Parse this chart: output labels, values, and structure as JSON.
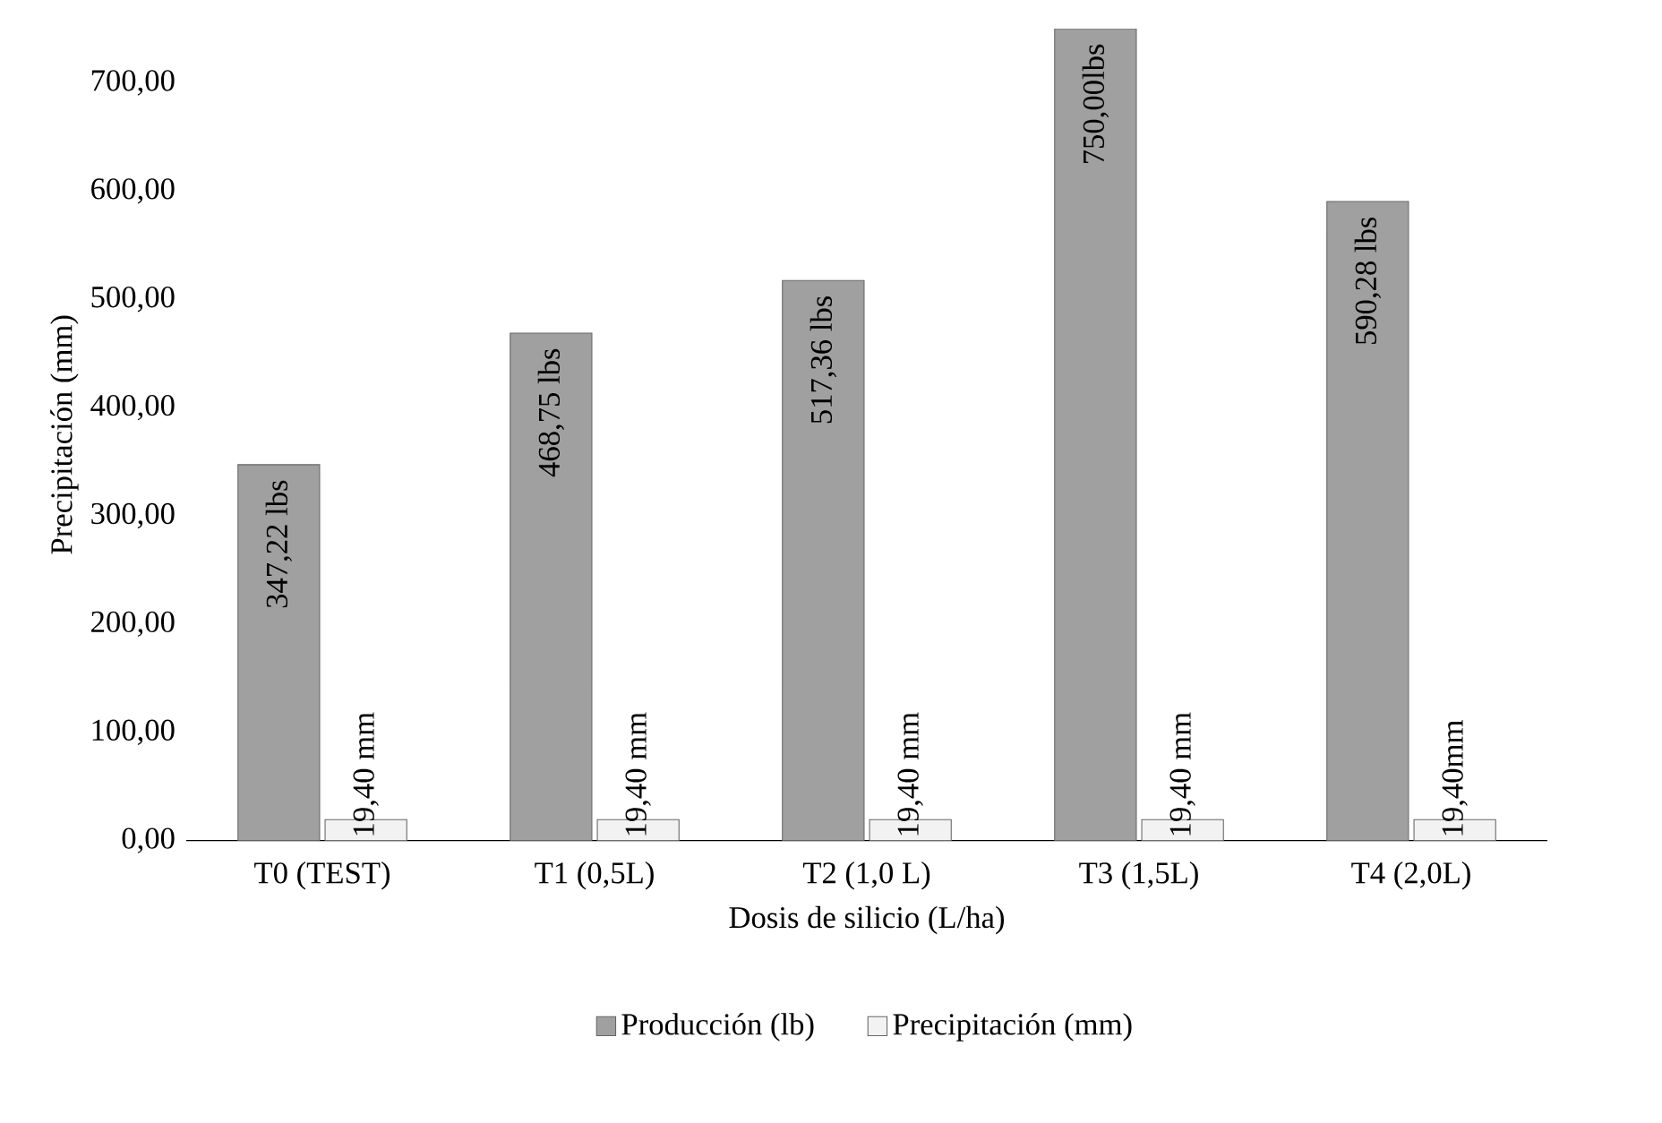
{
  "chart_data": {
    "type": "bar",
    "xlabel": "Dosis de silicio (L/ha)",
    "ylabel": "Precipitación (mm)",
    "categories": [
      "T0 (TEST)",
      "T1 (0,5L)",
      "T2 (1,0 L)",
      "T3 (1,5L)",
      "T4 (2,0L)"
    ],
    "series": [
      {
        "name": "Producción (lb)",
        "color": "#a0a0a0",
        "values": [
          347.22,
          468.75,
          517.36,
          750,
          590.28
        ],
        "value_labels": [
          "347,22 lbs",
          "468,75 lbs",
          "517,36 lbs",
          "750,00lbs",
          "590,28 lbs"
        ]
      },
      {
        "name": "Precipitación (mm)",
        "color": "#f2f2f2",
        "values": [
          19.4,
          19.4,
          19.4,
          19.4,
          19.4
        ],
        "value_labels": [
          "19,40 mm",
          "19,40 mm",
          "19,40 mm",
          "19,40 mm",
          "19,40mm"
        ]
      }
    ],
    "ylim": [
      0,
      750
    ],
    "yticks": [
      {
        "value": 0,
        "label": "0,00"
      },
      {
        "value": 100,
        "label": "100,00"
      },
      {
        "value": 200,
        "label": "200,00"
      },
      {
        "value": 300,
        "label": "300,00"
      },
      {
        "value": 400,
        "label": "400,00"
      },
      {
        "value": 500,
        "label": "500,00"
      },
      {
        "value": 600,
        "label": "600,00"
      },
      {
        "value": 700,
        "label": "700,00"
      }
    ],
    "legend": "bottom"
  }
}
